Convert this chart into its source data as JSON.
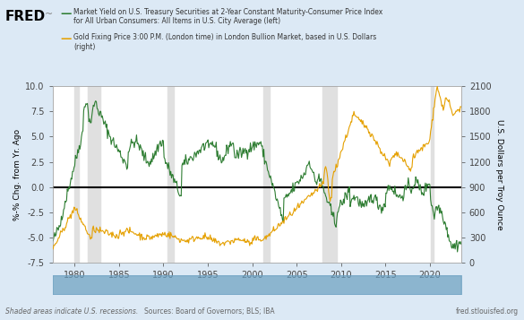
{
  "title_fred": "FRED",
  "legend1": "Market Yield on U.S. Treasury Securities at 2-Year Constant Maturity-Consumer Price Index\nfor All Urban Consumers: All Items in U.S. City Average (left)",
  "legend2": "Gold Fixing Price 3:00 P.M. (London time) in London Bullion Market, based in U.S. Dollars\n(right)",
  "ylabel_left": "%-% Chg. from Yr. Ago",
  "ylabel_right": "U.S. Dollars per Troy Ounce",
  "xlabel": "",
  "source_text": "Shaded areas indicate U.S. recessions.",
  "source_center": "Sources: Board of Governors; BLS; IBA",
  "source_right": "fred.stlouisfed.org",
  "background_color": "#dce9f5",
  "plot_background": "#ffffff",
  "green_color": "#2e7d32",
  "gold_color": "#e5a000",
  "recession_color": "#e0e0e0",
  "ylim_left": [
    -7.5,
    10.0
  ],
  "ylim_right": [
    0,
    2100
  ],
  "yticks_left": [
    -7.5,
    -5.0,
    -2.5,
    0.0,
    2.5,
    5.0,
    7.5,
    10.0
  ],
  "yticks_right": [
    0,
    300,
    600,
    900,
    1200,
    1500,
    1800,
    2100
  ],
  "xlim": [
    1977.5,
    2023.5
  ],
  "xticks": [
    1980,
    1985,
    1990,
    1995,
    2000,
    2005,
    2010,
    2015,
    2020
  ],
  "recession_bands": [
    [
      1980.0,
      1980.5
    ],
    [
      1981.5,
      1982.9
    ],
    [
      1990.5,
      1991.2
    ],
    [
      2001.2,
      2001.9
    ],
    [
      2007.9,
      2009.5
    ],
    [
      2020.1,
      2020.4
    ]
  ]
}
